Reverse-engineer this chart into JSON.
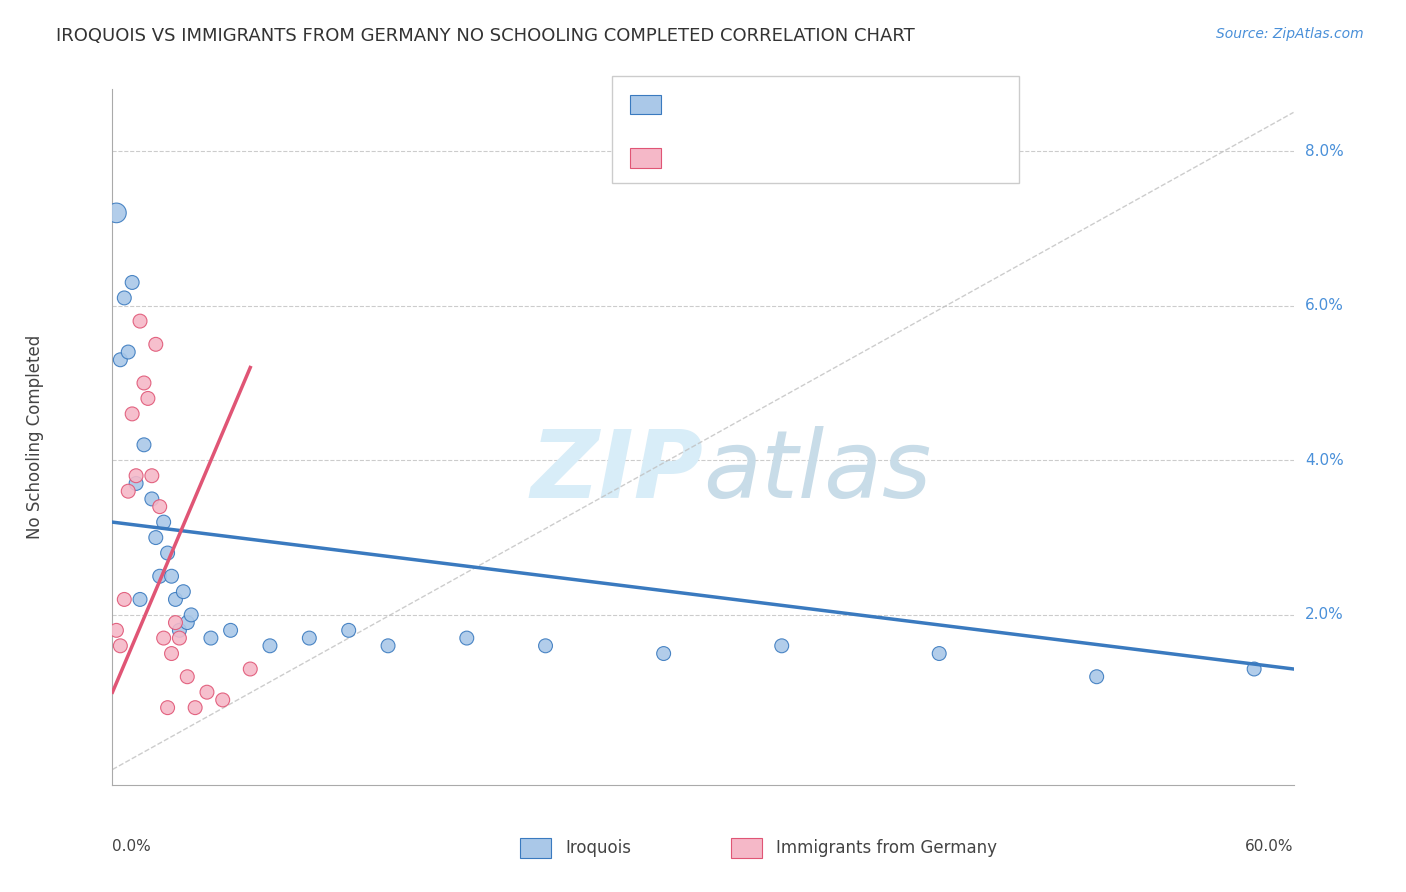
{
  "title": "IROQUOIS VS IMMIGRANTS FROM GERMANY NO SCHOOLING COMPLETED CORRELATION CHART",
  "source": "Source: ZipAtlas.com",
  "ylabel": "No Schooling Completed",
  "ylabel_right_ticks": [
    "8.0%",
    "6.0%",
    "4.0%",
    "2.0%"
  ],
  "ylabel_right_vals": [
    0.08,
    0.06,
    0.04,
    0.02
  ],
  "xlim": [
    0.0,
    0.6
  ],
  "ylim": [
    -0.002,
    0.088
  ],
  "blue_color": "#aac8e8",
  "pink_color": "#f5b8c8",
  "blue_line_color": "#3a7abf",
  "pink_line_color": "#e05575",
  "watermark_color": "#d8edf8",
  "blue_x": [
    0.002,
    0.004,
    0.006,
    0.008,
    0.01,
    0.012,
    0.014,
    0.016,
    0.02,
    0.022,
    0.024,
    0.026,
    0.028,
    0.03,
    0.032,
    0.034,
    0.036,
    0.038,
    0.04,
    0.05,
    0.06,
    0.08,
    0.1,
    0.12,
    0.14,
    0.18,
    0.22,
    0.28,
    0.34,
    0.42,
    0.5,
    0.58
  ],
  "blue_y": [
    0.072,
    0.053,
    0.061,
    0.054,
    0.063,
    0.037,
    0.022,
    0.042,
    0.035,
    0.03,
    0.025,
    0.032,
    0.028,
    0.025,
    0.022,
    0.018,
    0.023,
    0.019,
    0.02,
    0.017,
    0.018,
    0.016,
    0.017,
    0.018,
    0.016,
    0.017,
    0.016,
    0.015,
    0.016,
    0.015,
    0.012,
    0.013
  ],
  "blue_sizes": [
    200,
    100,
    100,
    100,
    100,
    100,
    100,
    100,
    100,
    100,
    100,
    100,
    100,
    100,
    100,
    100,
    100,
    100,
    100,
    100,
    100,
    100,
    100,
    100,
    100,
    100,
    100,
    100,
    100,
    100,
    100,
    100
  ],
  "pink_x": [
    0.002,
    0.004,
    0.006,
    0.008,
    0.01,
    0.012,
    0.014,
    0.016,
    0.018,
    0.02,
    0.022,
    0.024,
    0.026,
    0.028,
    0.03,
    0.032,
    0.034,
    0.038,
    0.042,
    0.048,
    0.056,
    0.07
  ],
  "pink_y": [
    0.018,
    0.016,
    0.022,
    0.036,
    0.046,
    0.038,
    0.058,
    0.05,
    0.048,
    0.038,
    0.055,
    0.034,
    0.017,
    0.008,
    0.015,
    0.019,
    0.017,
    0.012,
    0.008,
    0.01,
    0.009,
    0.013
  ],
  "pink_sizes": [
    100,
    100,
    100,
    100,
    100,
    100,
    100,
    100,
    100,
    100,
    100,
    100,
    100,
    100,
    100,
    100,
    100,
    100,
    100,
    100,
    100,
    100
  ],
  "blue_trend_x": [
    0.0,
    0.6
  ],
  "blue_trend_y": [
    0.032,
    0.013
  ],
  "pink_trend_x": [
    0.0,
    0.07
  ],
  "pink_trend_y": [
    0.01,
    0.052
  ]
}
